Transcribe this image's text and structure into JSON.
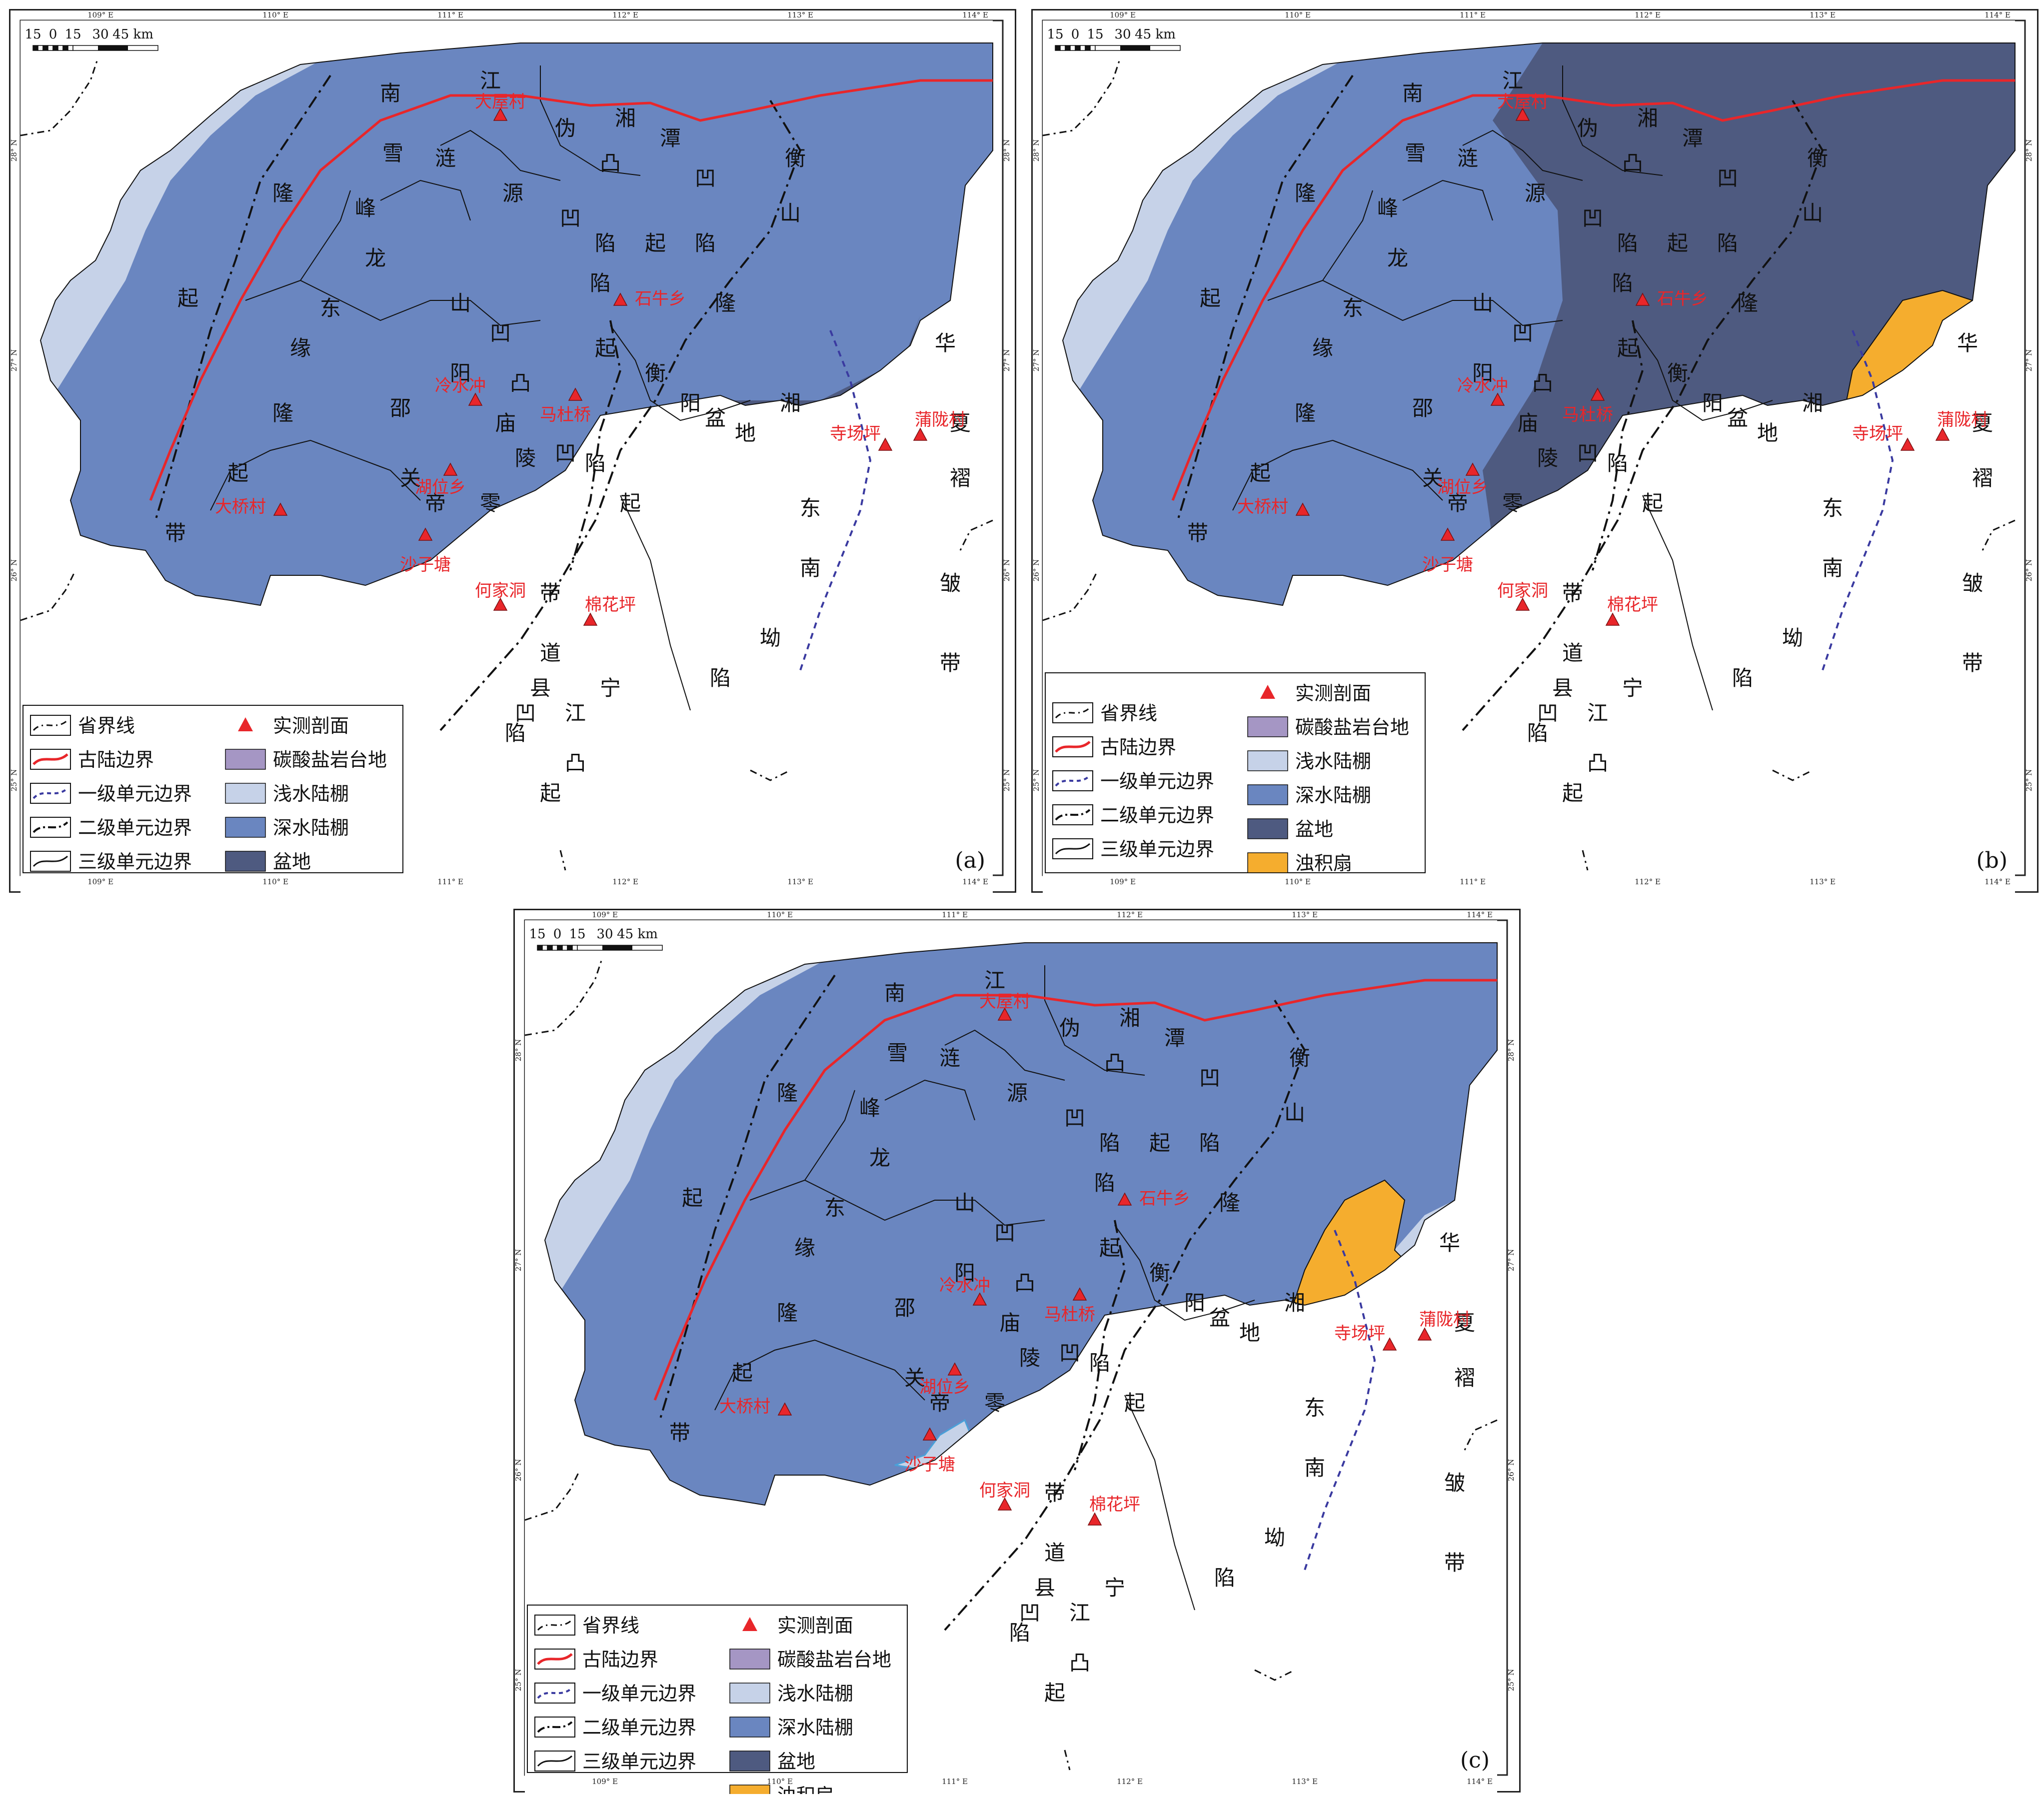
{
  "colors": {
    "carbonate_platform": "#a596c4",
    "shallow_shelf": "#c6d2e8",
    "deep_shelf": "#6a86c0",
    "basin": "#4e5a80",
    "turbidite_fan": "#f5ad2e",
    "paleocontinent_boundary": "#e8262a",
    "site_marker": "#e8262a",
    "first_order_boundary": "#3a3aa0",
    "line": "#111111"
  },
  "scale_bar": {
    "ticks": [
      "15",
      "0",
      "15",
      "30",
      "45 km"
    ]
  },
  "longitude_ticks": [
    "109° E",
    "110° E",
    "111° E",
    "112° E",
    "113° E",
    "114° E"
  ],
  "latitude_ticks": [
    "28° N",
    "27° N",
    "26° N",
    "25° N"
  ],
  "panels": [
    {
      "label": "(a)",
      "variant": "a"
    },
    {
      "label": "(b)",
      "variant": "b"
    },
    {
      "label": "(c)",
      "variant": "c"
    }
  ],
  "legend": {
    "provincial_boundary": "省界线",
    "paleocontinent_boundary": "古陆边界",
    "first_order_boundary": "一级单元边界",
    "second_order_boundary": "二级单元边界",
    "third_order_boundary": "三级单元边界",
    "measured_section": "实测剖面",
    "carbonate_platform": "碳酸盐岩台地",
    "shallow_shelf": "浅水陆棚",
    "deep_shelf": "深水陆棚",
    "basin": "盆地",
    "turbidite_fan": "浊积扇"
  },
  "sites": [
    "大屋村",
    "石牛乡",
    "冷水冲",
    "马杜桥",
    "湖位乡",
    "大桥村",
    "沙子塘",
    "何家洞",
    "棉花坪",
    "寺场坪",
    "蒲陇村"
  ],
  "region_labels": [
    "江",
    "南",
    "隆",
    "起",
    "雪",
    "峰",
    "龙",
    "东",
    "缘",
    "隆",
    "起",
    "带",
    "涟",
    "源",
    "山",
    "凹",
    "陷",
    "伪",
    "凸",
    "湘",
    "潭",
    "凹",
    "陷",
    "起",
    "衡",
    "山",
    "隆",
    "邵",
    "阳",
    "凹",
    "陷",
    "庙",
    "凸",
    "起",
    "关",
    "帝",
    "零",
    "陵",
    "凹",
    "陷",
    "起",
    "衡",
    "阳",
    "盆",
    "地",
    "湘",
    "东",
    "南",
    "坳",
    "陷",
    "华",
    "夏",
    "褶",
    "皱",
    "带",
    "道",
    "县",
    "凹",
    "陷",
    "宁",
    "江",
    "凸",
    "起",
    "带"
  ]
}
